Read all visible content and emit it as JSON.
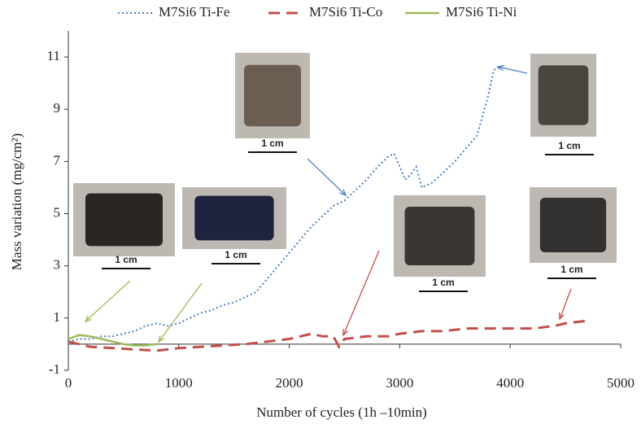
{
  "chart_data": {
    "type": "line",
    "x_label": "Number of cycles (1h –10min)",
    "y_label": "Mass variation (mg/cm²)",
    "xlim": [
      0,
      5000
    ],
    "xticks": [
      0,
      1000,
      2000,
      3000,
      4000,
      5000
    ],
    "ylim": [
      -1,
      12
    ],
    "yticks": [
      -1,
      1,
      3,
      5,
      7,
      9,
      11
    ],
    "series": [
      {
        "name": "M7Si6 Ti-Fe",
        "color": "#4f81bd",
        "dash": "dotted",
        "x": [
          0,
          100,
          200,
          300,
          400,
          500,
          600,
          700,
          800,
          900,
          1000,
          1100,
          1200,
          1300,
          1400,
          1500,
          1600,
          1700,
          1800,
          1900,
          2000,
          2100,
          2200,
          2300,
          2400,
          2500,
          2600,
          2700,
          2800,
          2900,
          2950,
          3050,
          3100,
          3150,
          3200,
          3300,
          3400,
          3500,
          3600,
          3700,
          3800,
          3850,
          3900
        ],
        "values": [
          0.1,
          0.2,
          0.2,
          0.3,
          0.3,
          0.4,
          0.5,
          0.7,
          0.8,
          0.7,
          0.8,
          1.0,
          1.2,
          1.3,
          1.5,
          1.6,
          1.8,
          2.0,
          2.5,
          3.0,
          3.5,
          4.0,
          4.5,
          4.9,
          5.3,
          5.5,
          5.9,
          6.3,
          6.8,
          7.2,
          7.3,
          6.3,
          6.5,
          6.8,
          6.0,
          6.2,
          6.6,
          7.0,
          7.5,
          8.0,
          9.5,
          10.5,
          10.6
        ]
      },
      {
        "name": "M7Si6 Ti-Co",
        "color": "#c0504d",
        "dash": "dashed",
        "x": [
          0,
          200,
          400,
          600,
          800,
          1000,
          1200,
          1400,
          1600,
          1800,
          2000,
          2100,
          2200,
          2300,
          2400,
          2450,
          2500,
          2700,
          2900,
          3000,
          3200,
          3400,
          3600,
          3800,
          4000,
          4200,
          4400,
          4500,
          4700
        ],
        "values": [
          0.1,
          -0.1,
          -0.15,
          -0.2,
          -0.25,
          -0.15,
          -0.1,
          -0.05,
          0.0,
          0.1,
          0.2,
          0.3,
          0.4,
          0.3,
          0.3,
          -0.1,
          0.2,
          0.3,
          0.3,
          0.4,
          0.5,
          0.5,
          0.6,
          0.6,
          0.6,
          0.6,
          0.7,
          0.8,
          0.9
        ]
      },
      {
        "name": "M7Si6 Ti-Ni",
        "color": "#9bbb59",
        "dash": "solid",
        "x": [
          0,
          100,
          200,
          300,
          400,
          500,
          600,
          700,
          800
        ],
        "values": [
          0.2,
          0.35,
          0.3,
          0.2,
          0.1,
          0.0,
          -0.05,
          -0.05,
          0.0
        ]
      }
    ],
    "scale_labels": [
      "1 cm",
      "1 cm",
      "1 cm",
      "1 cm",
      "1 cm",
      "1 cm"
    ]
  }
}
